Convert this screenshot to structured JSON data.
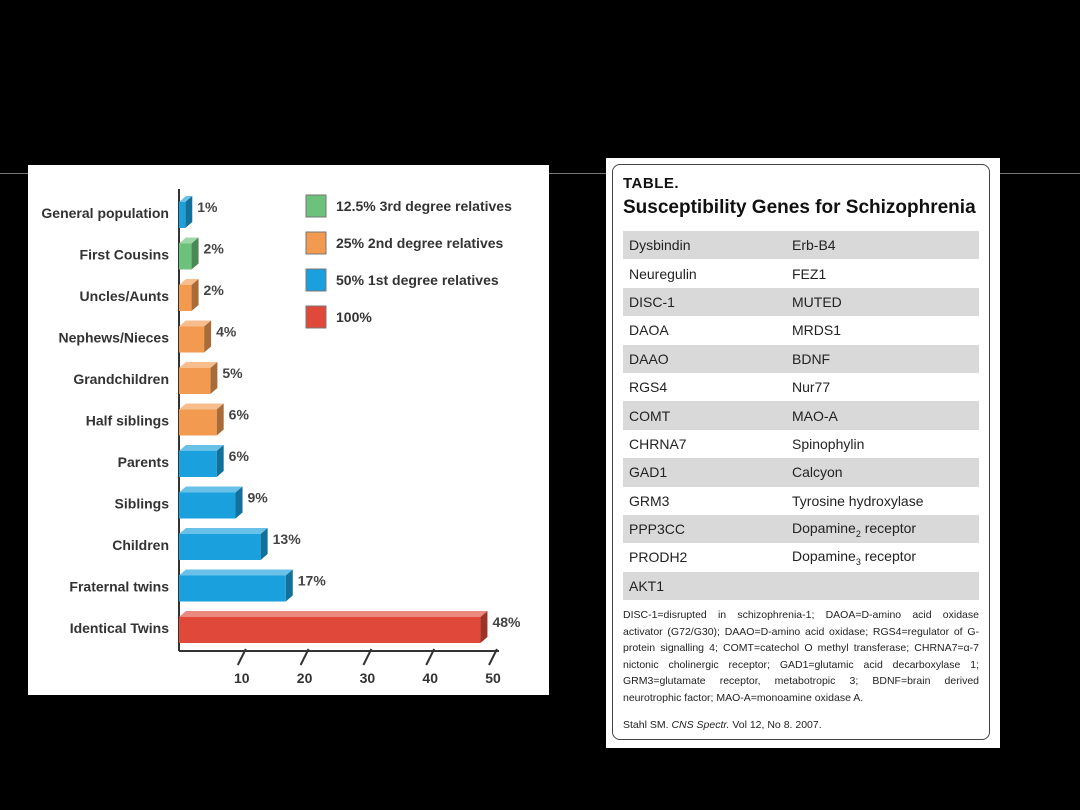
{
  "chart_data": {
    "type": "bar",
    "orientation": "horizontal",
    "categories": [
      "General population",
      "First Cousins",
      "Uncles/Aunts",
      "Nephews/Nieces",
      "Grandchildren",
      "Half siblings",
      "Parents",
      "Siblings",
      "Children",
      "Fraternal twins",
      "Identical Twins"
    ],
    "values": [
      1,
      2,
      2,
      4,
      5,
      6,
      6,
      9,
      13,
      17,
      48
    ],
    "value_labels": [
      "1%",
      "2%",
      "2%",
      "4%",
      "5%",
      "6%",
      "6%",
      "9%",
      "13%",
      "17%",
      "48%"
    ],
    "groups": [
      "50% 1st degree relatives",
      "12.5% 3rd degree relatives",
      "25% 2nd degree relatives",
      "25% 2nd degree relatives",
      "25% 2nd degree relatives",
      "25% 2nd degree relatives",
      "50% 1st degree relatives",
      "50% 1st degree relatives",
      "50% 1st degree relatives",
      "50% 1st degree relatives",
      "100%"
    ],
    "legend": [
      {
        "label": "12.5% 3rd degree relatives",
        "color": "#6cc27a"
      },
      {
        "label": "25% 2nd degree relatives",
        "color": "#f29a50"
      },
      {
        "label": "50% 1st degree relatives",
        "color": "#1aa0dc"
      },
      {
        "label": "100%",
        "color": "#e0483a"
      }
    ],
    "xticks": [
      "10",
      "20",
      "30",
      "40",
      "50"
    ],
    "xlim": [
      0,
      50
    ],
    "legend_position": "top-right",
    "title": "",
    "xlabel": "",
    "ylabel": ""
  },
  "table": {
    "kicker": "TABLE.",
    "title": "Susceptibility Genes for Schizophrenia",
    "rows": [
      {
        "c1": "Dysbindin",
        "c2": "Erb-B4"
      },
      {
        "c1": "Neuregulin",
        "c2": "FEZ1"
      },
      {
        "c1": "DISC-1",
        "c2": "MUTED"
      },
      {
        "c1": "DAOA",
        "c2": "MRDS1"
      },
      {
        "c1": "DAAO",
        "c2": "BDNF"
      },
      {
        "c1": "RGS4",
        "c2": "Nur77"
      },
      {
        "c1": "COMT",
        "c2": "MAO-A"
      },
      {
        "c1": "CHRNA7",
        "c2": "Spinophylin"
      },
      {
        "c1": "GAD1",
        "c2": "Calcyon"
      },
      {
        "c1": "GRM3",
        "c2": "Tyrosine hydroxylase"
      },
      {
        "c1": "PPP3CC",
        "c2": "Dopamine",
        "c2_sub": "2",
        "c2_tail": " receptor"
      },
      {
        "c1": "PRODH2",
        "c2": "Dopamine",
        "c2_sub": "3",
        "c2_tail": " receptor"
      },
      {
        "c1": "AKT1",
        "c2": ""
      }
    ],
    "footnote": "DISC-1=disrupted in schizophrenia-1; DAOA=D-amino acid oxidase activator (G72/G30); DAAO=D-amino acid oxidase; RGS4=regulator of G-protein signalling 4; COMT=catechol O methyl transferase; CHRNA7=α-7 nictonic cholinergic receptor; GAD1=glutamic acid decarboxylase 1; GRM3=glutamate receptor, metabotropic 3; BDNF=brain derived neurotrophic factor; MAO-A=monoamine oxidase A.",
    "source_prefix": "Stahl SM. ",
    "source_journal": "CNS Spectr.",
    "source_suffix": " Vol 12, No 8. 2007."
  }
}
